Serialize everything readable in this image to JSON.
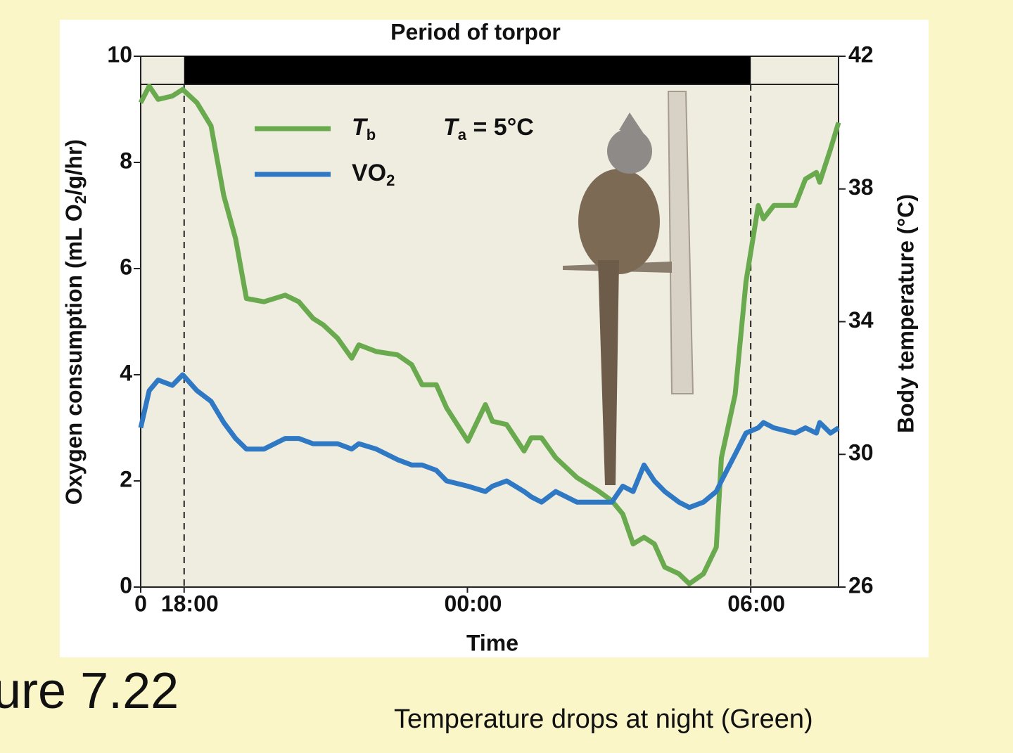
{
  "slide_title": "ure 7.22",
  "caption": "Temperature drops at night (Green)",
  "chart_data": {
    "type": "line",
    "title": "Period of torpor",
    "x_label": "Time",
    "y_label": {
      "main": "Oxygen consumption (mL O",
      "sub": "2",
      "rest": "/g/hr)"
    },
    "y2_label": "Body temperature (°C)",
    "annotation": {
      "main": "T",
      "sub": "a",
      "rest": " = 5°C"
    },
    "torpor": [
      0.92,
      12.92
    ],
    "xlim": [
      0,
      14.78
    ],
    "xticks": [
      {
        "value": 0,
        "label": "0"
      },
      {
        "value": 0.92,
        "label": "18:00"
      },
      {
        "value": 6.92,
        "label": "00:00"
      },
      {
        "value": 12.92,
        "label": "06:00"
      }
    ],
    "ylim": [
      0,
      10
    ],
    "yticks": [
      0,
      2,
      4,
      6,
      8,
      10
    ],
    "y2lim": [
      26,
      42
    ],
    "y2ticks": [
      26,
      30,
      34,
      38,
      42
    ],
    "x": [
      0,
      0.18,
      0.37,
      0.67,
      0.89,
      1.19,
      1.49,
      1.76,
      2.01,
      2.24,
      2.61,
      3.06,
      3.35,
      3.65,
      3.87,
      4.17,
      4.47,
      4.62,
      4.99,
      5.44,
      5.74,
      5.96,
      6.26,
      6.48,
      6.93,
      7.3,
      7.45,
      7.75,
      8.12,
      8.27,
      8.49,
      8.79,
      9.24,
      9.69,
      9.98,
      10.21,
      10.43,
      10.66,
      10.88,
      11.1,
      11.4,
      11.62,
      11.92,
      12.19,
      12.3,
      12.59,
      12.82,
      13.08,
      13.19,
      13.41,
      13.86,
      14.08,
      14.31,
      14.38,
      14.61,
      14.78
    ],
    "series": [
      {
        "name": "T",
        "name_sub": "b",
        "color": "#6aaa4e",
        "axis": "y2",
        "values": [
          40.6,
          41.1,
          40.7,
          40.8,
          41.0,
          40.6,
          39.9,
          37.8,
          36.5,
          34.7,
          34.6,
          34.8,
          34.6,
          34.1,
          33.9,
          33.5,
          32.9,
          33.3,
          33.1,
          33.0,
          32.7,
          32.1,
          32.1,
          31.4,
          30.4,
          31.5,
          31.0,
          30.9,
          30.1,
          30.5,
          30.5,
          29.9,
          29.3,
          28.9,
          28.6,
          28.2,
          27.3,
          27.5,
          27.3,
          26.6,
          26.4,
          26.1,
          26.4,
          27.2,
          29.9,
          31.8,
          35.2,
          37.5,
          37.1,
          37.5,
          37.5,
          38.3,
          38.5,
          38.2,
          39.2,
          40.0
        ]
      },
      {
        "name": "VO",
        "name_sub": "2",
        "color": "#2f78c4",
        "values": [
          3.0,
          3.7,
          3.9,
          3.8,
          4.0,
          3.7,
          3.5,
          3.1,
          2.8,
          2.6,
          2.6,
          2.8,
          2.8,
          2.7,
          2.7,
          2.7,
          2.6,
          2.7,
          2.6,
          2.4,
          2.3,
          2.3,
          2.2,
          2.0,
          1.9,
          1.8,
          1.9,
          2.0,
          1.8,
          1.7,
          1.6,
          1.8,
          1.6,
          1.6,
          1.6,
          1.9,
          1.8,
          2.3,
          2.0,
          1.8,
          1.6,
          1.5,
          1.6,
          1.8,
          2.0,
          2.5,
          2.9,
          3.0,
          3.1,
          3.0,
          2.9,
          3.0,
          2.9,
          3.1,
          2.9,
          3.0
        ]
      }
    ]
  }
}
